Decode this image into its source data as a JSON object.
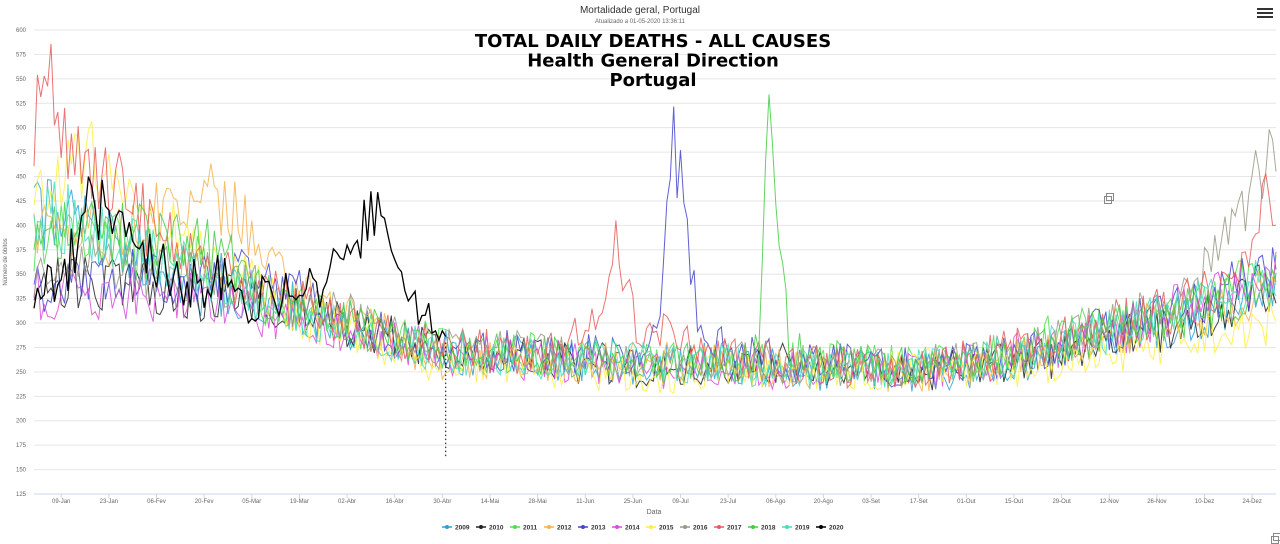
{
  "menu_icon": "hamburger-menu-icon",
  "copy_icon": "copy-icon",
  "chart_data": {
    "type": "line",
    "title": "Mortalidade geral, Portugal",
    "subtitle": "Atualizado a 01-05-2020 13:36:11",
    "overlay_title": [
      "TOTAL DAILY DEATHS - ALL CAUSES",
      "Health General Direction",
      "Portugal"
    ],
    "xlabel": "Data",
    "ylabel": "Número de óbitos",
    "ylim": [
      125,
      600
    ],
    "yticks": [
      125,
      150,
      175,
      200,
      225,
      250,
      275,
      300,
      325,
      350,
      375,
      400,
      425,
      450,
      475,
      500,
      525,
      550,
      575,
      600
    ],
    "x_range_days": [
      1,
      366
    ],
    "xticks": [
      {
        "label": "09-Jan",
        "day": 9
      },
      {
        "label": "23-Jan",
        "day": 23
      },
      {
        "label": "06-Fev",
        "day": 37
      },
      {
        "label": "20-Fev",
        "day": 51
      },
      {
        "label": "05-Mar",
        "day": 65
      },
      {
        "label": "19-Mar",
        "day": 79
      },
      {
        "label": "02-Abr",
        "day": 93
      },
      {
        "label": "16-Abr",
        "day": 107
      },
      {
        "label": "30-Abr",
        "day": 121
      },
      {
        "label": "14-Mai",
        "day": 135
      },
      {
        "label": "28-Mai",
        "day": 149
      },
      {
        "label": "11-Jun",
        "day": 163
      },
      {
        "label": "25-Jun",
        "day": 177
      },
      {
        "label": "09-Jul",
        "day": 191
      },
      {
        "label": "23-Jul",
        "day": 205
      },
      {
        "label": "06-Ago",
        "day": 219
      },
      {
        "label": "20-Ago",
        "day": 233
      },
      {
        "label": "03-Set",
        "day": 247
      },
      {
        "label": "17-Set",
        "day": 261
      },
      {
        "label": "01-Out",
        "day": 275
      },
      {
        "label": "15-Out",
        "day": 289
      },
      {
        "label": "29-Out",
        "day": 303
      },
      {
        "label": "12-Nov",
        "day": 317
      },
      {
        "label": "26-Nov",
        "day": 331
      },
      {
        "label": "10-Dez",
        "day": 345
      },
      {
        "label": "24-Dez",
        "day": 359
      }
    ],
    "grid": true,
    "legend_position": "bottom-center",
    "series": [
      {
        "name": "2009",
        "color": "#2f9fd6",
        "points": [
          [
            1,
            420
          ],
          [
            15,
            400
          ],
          [
            30,
            375
          ],
          [
            45,
            335
          ],
          [
            60,
            330
          ],
          [
            75,
            320
          ],
          [
            90,
            300
          ],
          [
            105,
            285
          ],
          [
            120,
            270
          ],
          [
            150,
            265
          ],
          [
            180,
            255
          ],
          [
            200,
            262
          ],
          [
            220,
            255
          ],
          [
            240,
            250
          ],
          [
            260,
            250
          ],
          [
            280,
            255
          ],
          [
            300,
            265
          ],
          [
            320,
            290
          ],
          [
            340,
            300
          ],
          [
            366,
            340
          ]
        ]
      },
      {
        "name": "2010",
        "color": "#222222",
        "points": [
          [
            1,
            340
          ],
          [
            15,
            340
          ],
          [
            30,
            345
          ],
          [
            45,
            330
          ],
          [
            60,
            325
          ],
          [
            75,
            315
          ],
          [
            90,
            300
          ],
          [
            105,
            285
          ],
          [
            120,
            270
          ],
          [
            150,
            262
          ],
          [
            180,
            255
          ],
          [
            200,
            260
          ],
          [
            220,
            258
          ],
          [
            240,
            255
          ],
          [
            260,
            250
          ],
          [
            280,
            258
          ],
          [
            300,
            265
          ],
          [
            320,
            285
          ],
          [
            340,
            300
          ],
          [
            366,
            345
          ]
        ]
      },
      {
        "name": "2011",
        "color": "#4ee04e",
        "points": [
          [
            1,
            380
          ],
          [
            15,
            400
          ],
          [
            30,
            375
          ],
          [
            45,
            370
          ],
          [
            60,
            330
          ],
          [
            75,
            320
          ],
          [
            90,
            305
          ],
          [
            105,
            290
          ],
          [
            120,
            275
          ],
          [
            150,
            268
          ],
          [
            180,
            258
          ],
          [
            200,
            262
          ],
          [
            220,
            260
          ],
          [
            240,
            258
          ],
          [
            260,
            255
          ],
          [
            280,
            265
          ],
          [
            300,
            285
          ],
          [
            320,
            300
          ],
          [
            340,
            320
          ],
          [
            366,
            350
          ]
        ]
      },
      {
        "name": "2012",
        "color": "#f6b24a",
        "points": [
          [
            1,
            400
          ],
          [
            15,
            390
          ],
          [
            30,
            390
          ],
          [
            45,
            420
          ],
          [
            55,
            430
          ],
          [
            65,
            390
          ],
          [
            75,
            340
          ],
          [
            90,
            310
          ],
          [
            105,
            285
          ],
          [
            120,
            265
          ],
          [
            150,
            262
          ],
          [
            180,
            258
          ],
          [
            200,
            260
          ],
          [
            220,
            255
          ],
          [
            240,
            252
          ],
          [
            260,
            250
          ],
          [
            280,
            258
          ],
          [
            300,
            270
          ],
          [
            320,
            290
          ],
          [
            340,
            310
          ],
          [
            366,
            330
          ]
        ]
      },
      {
        "name": "2013",
        "color": "#4444cc",
        "points": [
          [
            1,
            330
          ],
          [
            15,
            340
          ],
          [
            30,
            350
          ],
          [
            45,
            345
          ],
          [
            60,
            350
          ],
          [
            75,
            335
          ],
          [
            90,
            305
          ],
          [
            105,
            290
          ],
          [
            120,
            275
          ],
          [
            150,
            270
          ],
          [
            180,
            265
          ],
          [
            185,
            300
          ],
          [
            189,
            498
          ],
          [
            192,
            420
          ],
          [
            196,
            300
          ],
          [
            205,
            270
          ],
          [
            220,
            260
          ],
          [
            240,
            258
          ],
          [
            260,
            255
          ],
          [
            280,
            262
          ],
          [
            300,
            275
          ],
          [
            320,
            300
          ],
          [
            340,
            320
          ],
          [
            366,
            350
          ]
        ]
      },
      {
        "name": "2014",
        "color": "#d94cd9",
        "points": [
          [
            1,
            330
          ],
          [
            15,
            330
          ],
          [
            30,
            330
          ],
          [
            45,
            325
          ],
          [
            60,
            320
          ],
          [
            75,
            305
          ],
          [
            90,
            290
          ],
          [
            105,
            285
          ],
          [
            120,
            268
          ],
          [
            150,
            262
          ],
          [
            180,
            255
          ],
          [
            200,
            250
          ],
          [
            220,
            252
          ],
          [
            240,
            255
          ],
          [
            260,
            250
          ],
          [
            280,
            260
          ],
          [
            300,
            275
          ],
          [
            320,
            290
          ],
          [
            340,
            320
          ],
          [
            366,
            350
          ]
        ]
      },
      {
        "name": "2015",
        "color": "#ffee44",
        "points": [
          [
            1,
            430
          ],
          [
            12,
            480
          ],
          [
            25,
            440
          ],
          [
            40,
            400
          ],
          [
            55,
            360
          ],
          [
            70,
            330
          ],
          [
            85,
            300
          ],
          [
            100,
            285
          ],
          [
            120,
            260
          ],
          [
            150,
            255
          ],
          [
            180,
            240
          ],
          [
            200,
            250
          ],
          [
            220,
            255
          ],
          [
            240,
            250
          ],
          [
            260,
            255
          ],
          [
            280,
            250
          ],
          [
            300,
            260
          ],
          [
            320,
            270
          ],
          [
            340,
            285
          ],
          [
            360,
            290
          ],
          [
            366,
            310
          ]
        ]
      },
      {
        "name": "2016",
        "color": "#999988",
        "points": [
          [
            1,
            350
          ],
          [
            15,
            365
          ],
          [
            30,
            355
          ],
          [
            45,
            350
          ],
          [
            60,
            340
          ],
          [
            75,
            320
          ],
          [
            90,
            310
          ],
          [
            105,
            290
          ],
          [
            120,
            275
          ],
          [
            150,
            268
          ],
          [
            180,
            260
          ],
          [
            200,
            262
          ],
          [
            220,
            258
          ],
          [
            240,
            255
          ],
          [
            260,
            255
          ],
          [
            280,
            265
          ],
          [
            300,
            280
          ],
          [
            320,
            300
          ],
          [
            340,
            330
          ],
          [
            350,
            380
          ],
          [
            358,
            420
          ],
          [
            362,
            460
          ],
          [
            366,
            470
          ]
        ]
      },
      {
        "name": "2017",
        "color": "#e85a5a",
        "points": [
          [
            1,
            480
          ],
          [
            4,
            580
          ],
          [
            8,
            500
          ],
          [
            15,
            450
          ],
          [
            25,
            460
          ],
          [
            35,
            400
          ],
          [
            45,
            370
          ],
          [
            60,
            340
          ],
          [
            75,
            325
          ],
          [
            90,
            305
          ],
          [
            105,
            290
          ],
          [
            120,
            275
          ],
          [
            150,
            268
          ],
          [
            168,
            300
          ],
          [
            172,
            375
          ],
          [
            178,
            300
          ],
          [
            200,
            265
          ],
          [
            220,
            260
          ],
          [
            240,
            255
          ],
          [
            260,
            252
          ],
          [
            280,
            265
          ],
          [
            300,
            280
          ],
          [
            320,
            300
          ],
          [
            340,
            320
          ],
          [
            355,
            350
          ],
          [
            362,
            425
          ],
          [
            366,
            380
          ]
        ]
      },
      {
        "name": "2018",
        "color": "#44cc44",
        "points": [
          [
            1,
            390
          ],
          [
            15,
            400
          ],
          [
            30,
            390
          ],
          [
            45,
            390
          ],
          [
            60,
            360
          ],
          [
            75,
            320
          ],
          [
            90,
            305
          ],
          [
            105,
            285
          ],
          [
            120,
            270
          ],
          [
            150,
            265
          ],
          [
            180,
            260
          ],
          [
            200,
            260
          ],
          [
            210,
            260
          ],
          [
            214,
            280
          ],
          [
            217,
            510
          ],
          [
            220,
            420
          ],
          [
            223,
            270
          ],
          [
            240,
            258
          ],
          [
            260,
            255
          ],
          [
            280,
            262
          ],
          [
            300,
            278
          ],
          [
            320,
            295
          ],
          [
            340,
            310
          ],
          [
            366,
            330
          ]
        ]
      },
      {
        "name": "2019",
        "color": "#44ddbb",
        "points": [
          [
            1,
            420
          ],
          [
            15,
            400
          ],
          [
            30,
            380
          ],
          [
            45,
            360
          ],
          [
            60,
            335
          ],
          [
            75,
            320
          ],
          [
            90,
            300
          ],
          [
            105,
            285
          ],
          [
            120,
            270
          ],
          [
            150,
            265
          ],
          [
            180,
            260
          ],
          [
            200,
            258
          ],
          [
            220,
            255
          ],
          [
            240,
            252
          ],
          [
            260,
            252
          ],
          [
            280,
            262
          ],
          [
            300,
            275
          ],
          [
            320,
            295
          ],
          [
            340,
            315
          ],
          [
            366,
            345
          ]
        ]
      },
      {
        "name": "2020",
        "color": "#000000",
        "points": [
          [
            1,
            320
          ],
          [
            10,
            350
          ],
          [
            18,
            420
          ],
          [
            25,
            400
          ],
          [
            35,
            370
          ],
          [
            45,
            340
          ],
          [
            55,
            345
          ],
          [
            65,
            320
          ],
          [
            75,
            330
          ],
          [
            85,
            340
          ],
          [
            95,
            380
          ],
          [
            100,
            420
          ],
          [
            105,
            390
          ],
          [
            112,
            330
          ],
          [
            118,
            310
          ],
          [
            122,
            285
          ]
        ]
      }
    ],
    "annotation": {
      "type": "dashed-vertical-line",
      "x_day": 122,
      "y_from": 280,
      "y_to": 162
    }
  }
}
